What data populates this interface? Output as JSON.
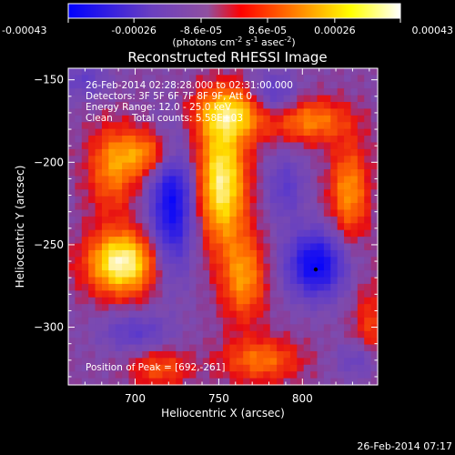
{
  "colorbar": {
    "ticks": [
      "-0.00043",
      "-0.00026",
      "-8.6e-05",
      "8.6e-05",
      "0.00026",
      "0.00043"
    ],
    "tick_values": [
      -0.00043,
      -0.00026,
      -8.6e-05,
      8.6e-05,
      0.00026,
      0.00043
    ],
    "range": [
      -0.00043,
      0.00043
    ],
    "units_prefix": "(photons cm",
    "units_exp1": "-2",
    "units_mid": " s",
    "units_exp2": "-1",
    "units_mid2": " asec",
    "units_exp3": "-2",
    "units_suffix": ")",
    "colors": [
      "#0000ff",
      "#6a3fc0",
      "#8b4fb0",
      "#ff0000",
      "#ff8a00",
      "#ffff00",
      "#ffffff"
    ]
  },
  "chart_data": {
    "type": "heatmap",
    "title": "Reconstructed RHESSI Image",
    "xlabel": "Heliocentric X (arcsec)",
    "ylabel": "Heliocentric Y (arcsec)",
    "xlim": [
      660,
      845
    ],
    "ylim": [
      -335,
      -143
    ],
    "x_ticks": [
      700,
      750,
      800
    ],
    "y_ticks": [
      -150,
      -200,
      -250,
      -300
    ],
    "annotations": {
      "time": "26-Feb-2014 02:28:28.000 to 02:31:00.000",
      "detectors": "Detectors: 3F 5F 6F 7F 8F 9F, Att 0",
      "energy": "Energy Range: 12.0 - 25.0 keV",
      "clean": "Clean",
      "counts": "Total counts: 5.58E+03",
      "peak": "Position of Peak = [692,-261]"
    },
    "peak_marker": [
      808,
      -265
    ],
    "sources": [
      {
        "x": 692,
        "y": -261,
        "sx": 14,
        "sy": 13,
        "amp": 1.0
      },
      {
        "x": 752,
        "y": -212,
        "sx": 10,
        "sy": 26,
        "amp": 0.92
      },
      {
        "x": 758,
        "y": -170,
        "sx": 16,
        "sy": 11,
        "amp": 0.7
      },
      {
        "x": 765,
        "y": -270,
        "sx": 9,
        "sy": 18,
        "amp": 0.55
      },
      {
        "x": 708,
        "y": -195,
        "sx": 14,
        "sy": 10,
        "amp": 0.55
      },
      {
        "x": 686,
        "y": -205,
        "sx": 10,
        "sy": 18,
        "amp": 0.45
      },
      {
        "x": 828,
        "y": -218,
        "sx": 8,
        "sy": 20,
        "amp": 0.55
      },
      {
        "x": 805,
        "y": -175,
        "sx": 16,
        "sy": 9,
        "amp": 0.5
      },
      {
        "x": 775,
        "y": -320,
        "sx": 16,
        "sy": 9,
        "amp": 0.45
      },
      {
        "x": 715,
        "y": -325,
        "sx": 12,
        "sy": 8,
        "amp": 0.35
      },
      {
        "x": 842,
        "y": -300,
        "sx": 8,
        "sy": 18,
        "amp": 0.3
      },
      {
        "x": 722,
        "y": -225,
        "sx": 9,
        "sy": 28,
        "amp": -0.85
      },
      {
        "x": 808,
        "y": -262,
        "sx": 12,
        "sy": 14,
        "amp": -0.9
      },
      {
        "x": 782,
        "y": -160,
        "sx": 10,
        "sy": 10,
        "amp": -0.45
      },
      {
        "x": 700,
        "y": -303,
        "sx": 14,
        "sy": 8,
        "amp": -0.35
      },
      {
        "x": 835,
        "y": -320,
        "sx": 10,
        "sy": 8,
        "amp": -0.3
      },
      {
        "x": 670,
        "y": -150,
        "sx": 10,
        "sy": 8,
        "amp": -0.3
      },
      {
        "x": 790,
        "y": -215,
        "sx": 8,
        "sy": 14,
        "amp": -0.35
      }
    ]
  },
  "footer": {
    "timestamp": "26-Feb-2014 07:17"
  }
}
